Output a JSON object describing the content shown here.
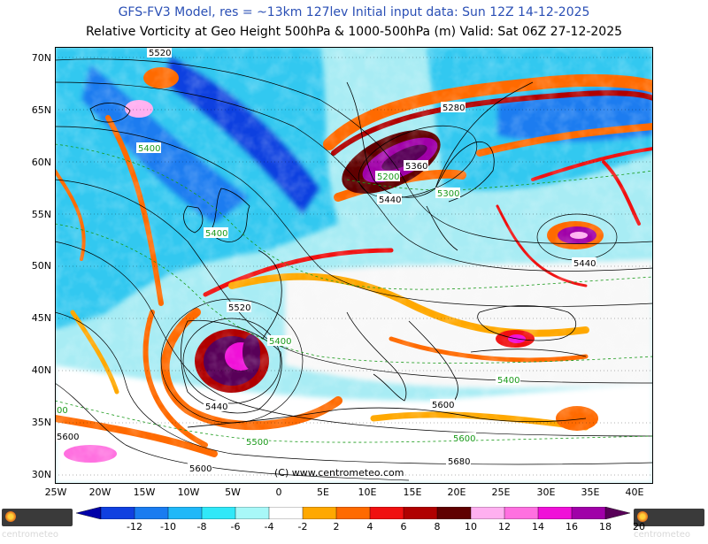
{
  "header": {
    "line1": "GFS-FV3 Model, res = ~13km 127lev    Initial input data: Sun 12Z 14-12-2025",
    "line2": "Relative Vorticity at Geo Height 500hPa & 1000-500hPa (m)  Valid: Sat 06Z 27-12-2025"
  },
  "map": {
    "lat_labels": [
      "70N",
      "65N",
      "60N",
      "55N",
      "50N",
      "45N",
      "40N",
      "35N",
      "30N"
    ],
    "lon_labels": [
      "25W",
      "20W",
      "15W",
      "10W",
      "5W",
      "0",
      "5E",
      "10E",
      "15E",
      "20E",
      "25E",
      "30E",
      "35E",
      "40E"
    ],
    "contour_labels": [
      {
        "text": "5520",
        "color": "black"
      },
      {
        "text": "5280",
        "color": "black"
      },
      {
        "text": "5360",
        "color": "black"
      },
      {
        "text": "5400",
        "color": "green"
      },
      {
        "text": "5200",
        "color": "green"
      },
      {
        "text": "5440",
        "color": "black"
      },
      {
        "text": "5300",
        "color": "green"
      },
      {
        "text": "5400",
        "color": "green"
      },
      {
        "text": "5440",
        "color": "black"
      },
      {
        "text": "5520",
        "color": "black"
      },
      {
        "text": "5400",
        "color": "green"
      },
      {
        "text": "5440",
        "color": "black"
      },
      {
        "text": "5400",
        "color": "green"
      },
      {
        "text": "5600",
        "color": "black"
      },
      {
        "text": "5500",
        "color": "green"
      },
      {
        "text": "5600",
        "color": "black"
      },
      {
        "text": "5600",
        "color": "black"
      },
      {
        "text": "5680",
        "color": "black"
      },
      {
        "text": "5600",
        "color": "black"
      },
      {
        "text": "00",
        "color": "green"
      }
    ],
    "copyright": "(C) www.centrometeo.com"
  },
  "colorbar": {
    "labels": [
      "-12",
      "-10",
      "-8",
      "-6",
      "-4",
      "-2",
      "2",
      "4",
      "6",
      "8",
      "10",
      "12",
      "14",
      "16",
      "18",
      "20"
    ],
    "colors": [
      "#0000a8",
      "#1040e0",
      "#1a7cf0",
      "#20b8f8",
      "#30e8f8",
      "#a8f8f8",
      "#ffffff",
      "#ffa800",
      "#ff6a00",
      "#f01010",
      "#b00000",
      "#600000",
      "#ffb0f0",
      "#ff70e0",
      "#f010d8",
      "#a000a8",
      "#580058"
    ]
  },
  "logos": {
    "left": "centrometeo",
    "right": "centrometeo"
  }
}
